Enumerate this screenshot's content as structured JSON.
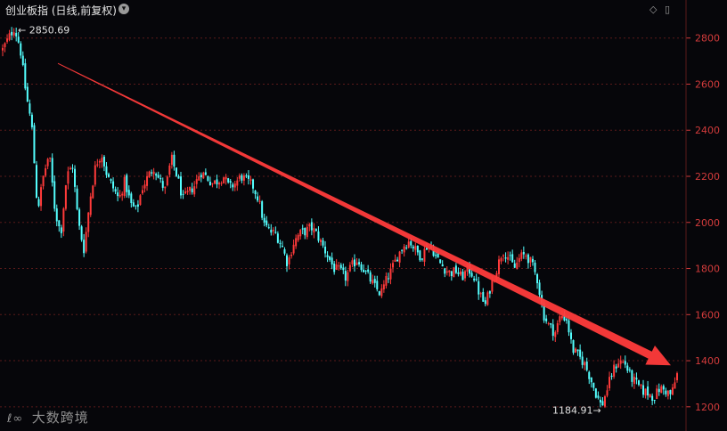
{
  "header": {
    "title": "创业板指 (日线,前复权)",
    "caret_icon": "chevron-down-icon",
    "ctrl_diamond": "◇",
    "ctrl_layout": "▯"
  },
  "watermark": {
    "text": "大数跨境",
    "logo_icon": "brand-logo-icon"
  },
  "colors": {
    "background": "#06060a",
    "up": "#ff3a3a",
    "down": "#54ffff",
    "axis_text": "#d23b3b",
    "trend_arrow": "#ff3b3b",
    "grid": "#5a1a1a"
  },
  "chart_data": {
    "type": "candlestick",
    "title": "创业板指 (日线,前复权)",
    "xlabel": "",
    "ylabel": "",
    "ylim": [
      1180,
      2880
    ],
    "grid": true,
    "y_ticks": [
      2800,
      2600,
      2400,
      2200,
      2000,
      1800,
      1600,
      1400,
      1200
    ],
    "annotations": {
      "high": "2850.69",
      "low": "1184.91",
      "high_value": 2850.69,
      "low_value": 1184.91
    },
    "trend_arrow": {
      "from": 2690,
      "to": 1380,
      "direction": "down"
    },
    "close_path": [
      2750,
      2800,
      2845,
      2760,
      2560,
      2420,
      2050,
      2200,
      2300,
      2050,
      1950,
      2200,
      2250,
      2000,
      1880,
      2100,
      2250,
      2300,
      2200,
      2150,
      2100,
      2180,
      2080,
      2050,
      2150,
      2200,
      2240,
      2180,
      2140,
      2280,
      2200,
      2100,
      2130,
      2160,
      2220,
      2200,
      2170,
      2180,
      2200,
      2150,
      2170,
      2200,
      2180,
      2160,
      2100,
      1990,
      1960,
      1950,
      1900,
      1820,
      1910,
      1950,
      1960,
      1980,
      1950,
      1900,
      1850,
      1800,
      1790,
      1760,
      1810,
      1840,
      1800,
      1760,
      1720,
      1690,
      1750,
      1800,
      1860,
      1900,
      1920,
      1880,
      1850,
      1900,
      1880,
      1830,
      1800,
      1780,
      1790,
      1760,
      1800,
      1770,
      1690,
      1640,
      1730,
      1800,
      1880,
      1850,
      1800,
      1850,
      1860,
      1820,
      1750,
      1600,
      1550,
      1520,
      1600,
      1580,
      1450,
      1420,
      1390,
      1330,
      1260,
      1200,
      1280,
      1360,
      1400,
      1390,
      1330,
      1300,
      1270,
      1260,
      1240,
      1280,
      1270,
      1250,
      1340
    ]
  }
}
